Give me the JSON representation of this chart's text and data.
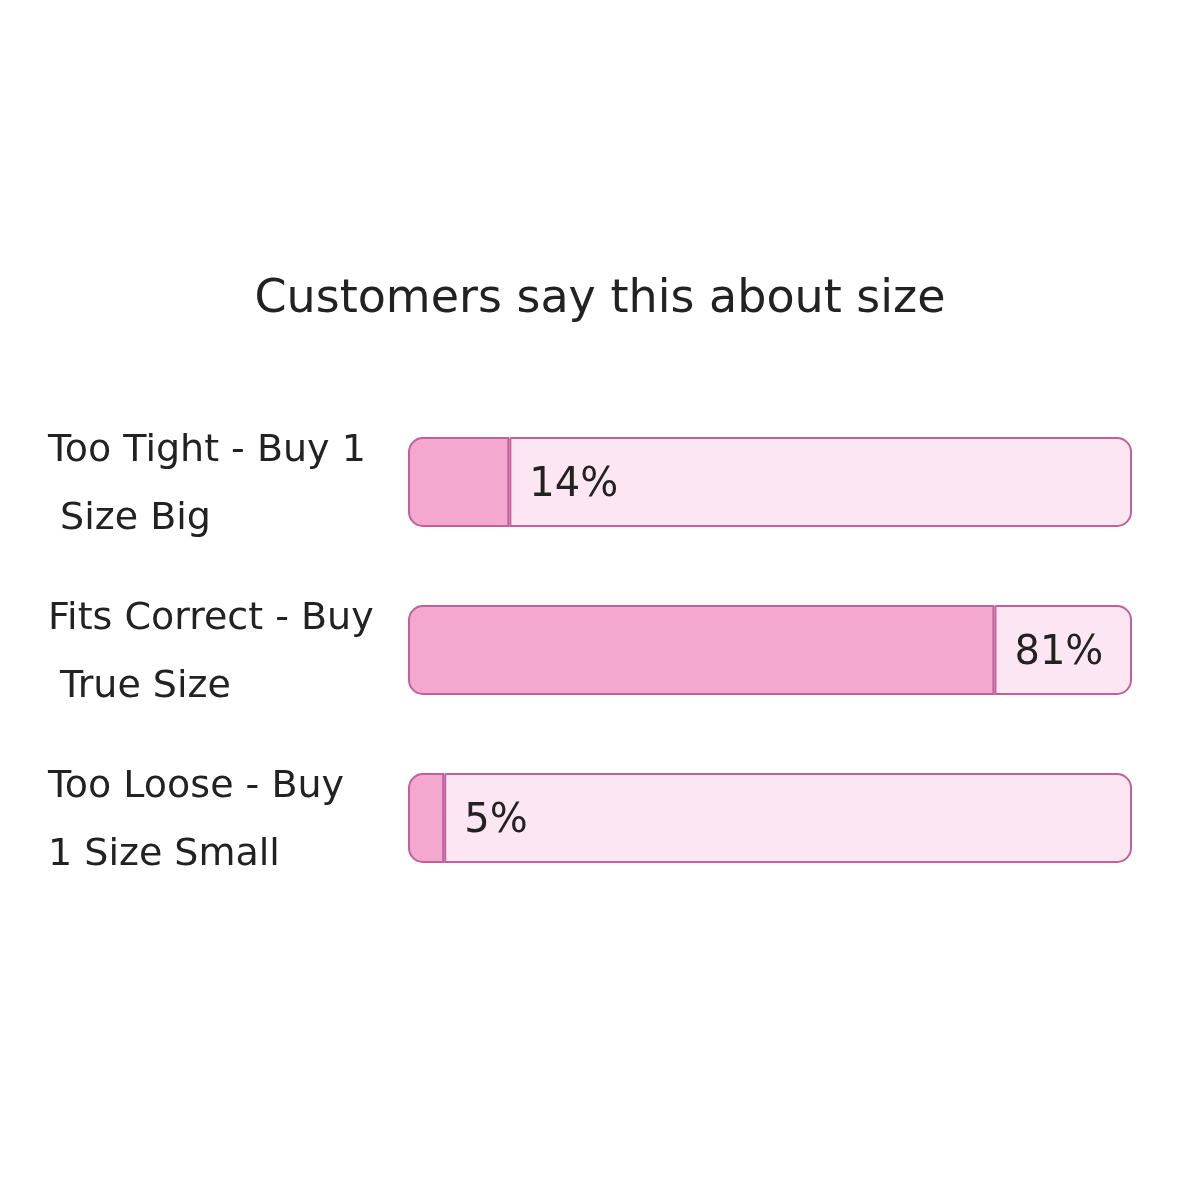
{
  "chart_data": {
    "type": "bar",
    "orientation": "horizontal",
    "stacked": true,
    "title": "Customers say this about size",
    "categories": [
      "Too Tight - Buy 1 Size Big",
      "Fits Correct - Buy True Size",
      "Too Loose - Buy 1 Size Small"
    ],
    "series": [
      {
        "color": "#f4a7cf",
        "values": [
          14,
          81,
          5
        ],
        "value_labels": [
          "14%",
          "81%",
          "5%"
        ]
      },
      {
        "color": "#fde6f3",
        "values": [
          86,
          19,
          95
        ]
      }
    ],
    "tick_labels": "y"
  }
}
